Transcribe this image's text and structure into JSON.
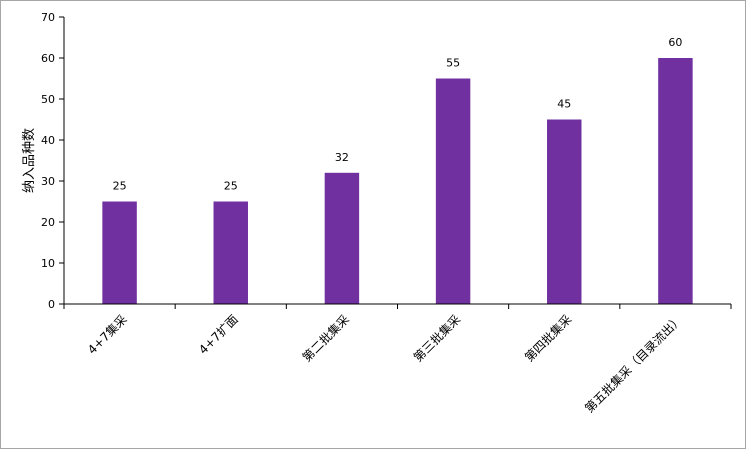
{
  "chart_data": {
    "type": "bar",
    "title": "",
    "xlabel": "",
    "ylabel": "纳入品种数",
    "categories": [
      "4+7集采",
      "4+7扩面",
      "第二批集采",
      "第三批集采",
      "第四批集采",
      "第五批集采（目录流出）"
    ],
    "values": [
      25,
      25,
      32,
      55,
      45,
      60
    ],
    "ylim": [
      0,
      70
    ],
    "yticks": [
      0,
      10,
      20,
      30,
      40,
      50,
      60,
      70
    ],
    "bar_color": "#7030a0",
    "grid": false,
    "legend": false,
    "data_labels": true
  }
}
